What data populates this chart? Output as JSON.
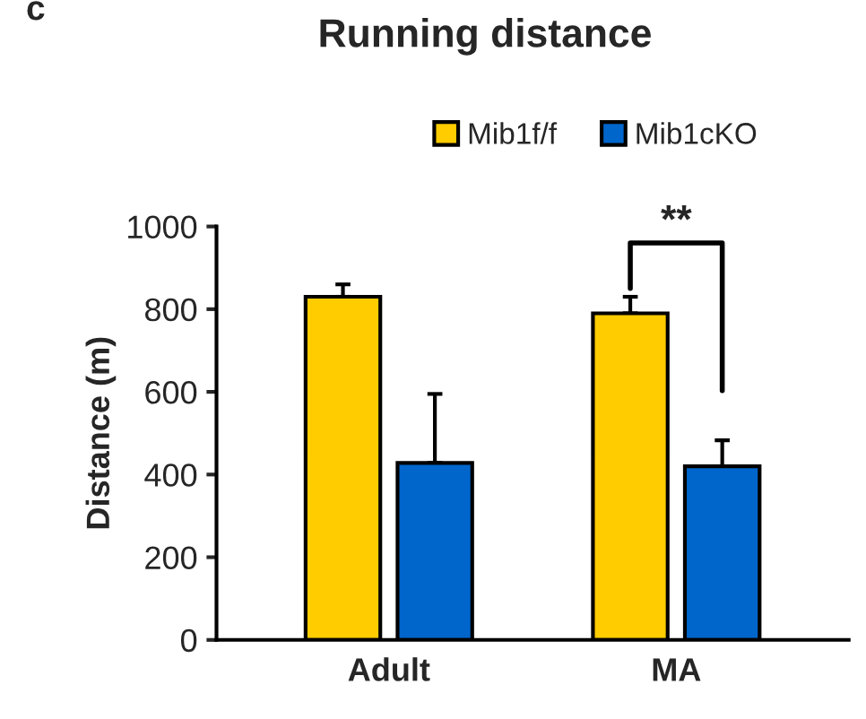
{
  "chart_data": {
    "type": "bar",
    "title": "Running distance",
    "ylabel": "Distance (m)",
    "categories": [
      "Adult",
      "MA"
    ],
    "series": [
      {
        "name": "Mib1f/f",
        "color": "#ffcc00",
        "values": [
          830,
          790
        ],
        "errors": [
          [
            830,
            860
          ],
          [
            790,
            830
          ]
        ]
      },
      {
        "name": "Mib1cKO",
        "color": "#0066cc",
        "values": [
          428,
          420
        ],
        "errors": [
          [
            428,
            595
          ],
          [
            420,
            483
          ]
        ]
      }
    ],
    "ylim": [
      0,
      1000
    ],
    "yticks": [
      0,
      200,
      400,
      600,
      800,
      1000
    ],
    "annotations": [
      "c",
      "**"
    ],
    "grid": false,
    "legend": "top"
  }
}
